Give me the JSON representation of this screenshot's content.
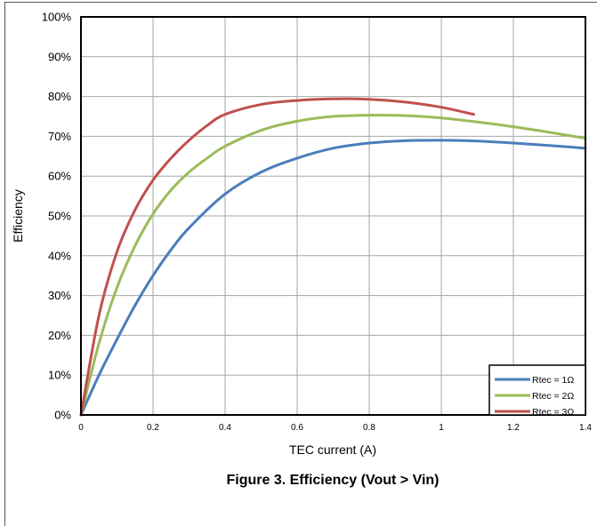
{
  "chart_data": {
    "type": "line",
    "title": "",
    "caption": "Figure 3. Efficiency (Vout > Vin)",
    "xlabel": "TEC current (A)",
    "ylabel": "Efficiency",
    "xlim": [
      0,
      1.4
    ],
    "ylim": [
      0,
      100
    ],
    "x_ticks": [
      "0",
      "0.2",
      "0.4",
      "0.6",
      "0.8",
      "1",
      "1.2",
      "1.4"
    ],
    "y_ticks": [
      "0%",
      "10%",
      "20%",
      "30%",
      "40%",
      "50%",
      "60%",
      "70%",
      "80%",
      "90%",
      "100%"
    ],
    "grid": true,
    "legend_position": "bottom-right",
    "series": [
      {
        "name": "Rtec = 1Ω",
        "color": "#4a7ebb",
        "x": [
          0,
          0.05,
          0.1,
          0.15,
          0.2,
          0.25,
          0.3,
          0.4,
          0.5,
          0.6,
          0.7,
          0.8,
          0.9,
          1.0,
          1.1,
          1.2,
          1.3,
          1.4
        ],
        "y": [
          0,
          10,
          19,
          27.5,
          35,
          41.5,
          47,
          55.5,
          61,
          64.5,
          67,
          68.3,
          68.9,
          69,
          68.8,
          68.3,
          67.7,
          67
        ]
      },
      {
        "name": "Rtec = 2Ω",
        "color": "#9bbb59",
        "x": [
          0,
          0.05,
          0.1,
          0.15,
          0.2,
          0.25,
          0.3,
          0.35,
          0.4,
          0.5,
          0.6,
          0.7,
          0.8,
          0.9,
          1.0,
          1.1,
          1.2,
          1.3,
          1.4
        ],
        "y": [
          0,
          18,
          32,
          42.5,
          50.5,
          56.5,
          61,
          64.5,
          67.5,
          71.5,
          73.8,
          75,
          75.3,
          75.2,
          74.6,
          73.6,
          72.4,
          71,
          69.5
        ]
      },
      {
        "name": "Rtec = 3Ω",
        "color": "#c0504d",
        "x": [
          0,
          0.05,
          0.1,
          0.15,
          0.2,
          0.25,
          0.3,
          0.35,
          0.4,
          0.5,
          0.6,
          0.7,
          0.8,
          0.9,
          1.0,
          1.09
        ],
        "y": [
          0,
          25,
          41,
          51.5,
          59,
          64.5,
          69,
          72.7,
          75.5,
          78,
          79,
          79.4,
          79.3,
          78.6,
          77.3,
          75.5
        ]
      }
    ]
  }
}
